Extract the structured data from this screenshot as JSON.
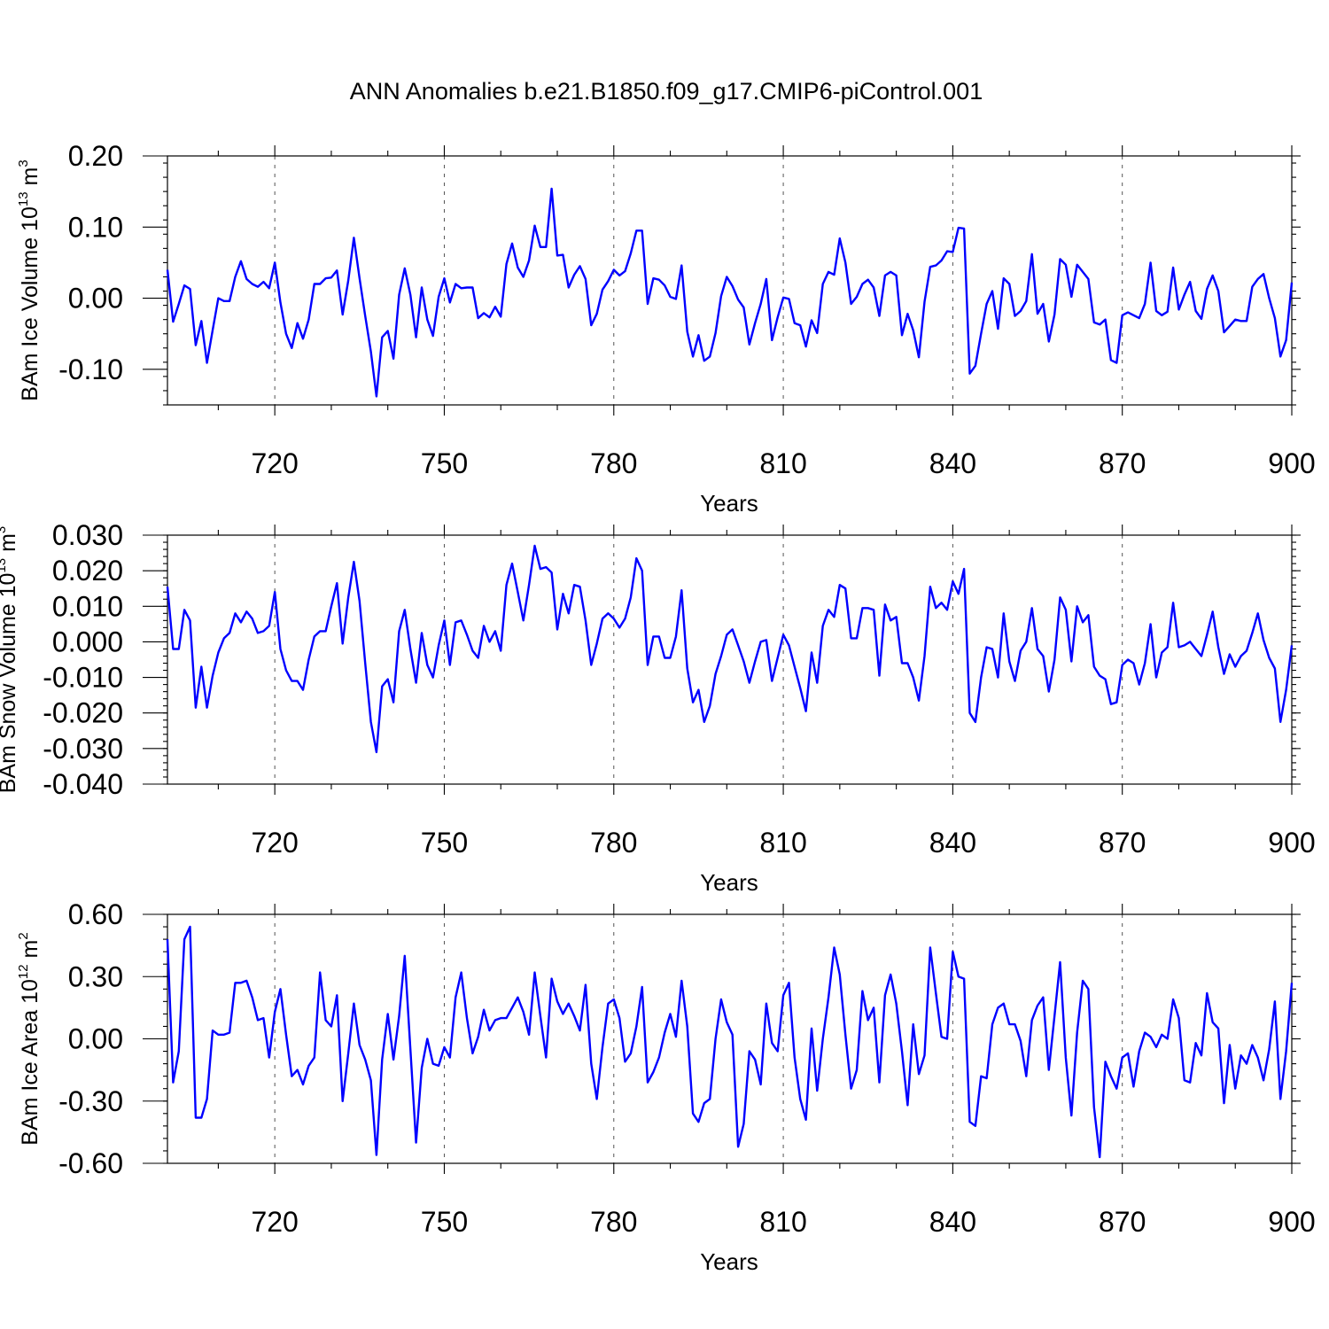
{
  "figure": {
    "title": "ANN Anomalies b.e21.B1850.f09_g17.CMIP6-piControl.001",
    "line_color": "#0000ff"
  },
  "chart_data": [
    {
      "type": "line",
      "title": "ANN Anomalies b.e21.B1850.f09_g17.CMIP6-piControl.001",
      "ylabel": "BAm Ice Volume",
      "ylabel_unit": "10",
      "ylabel_exp": "13",
      "ylabel_unit_tail": "m",
      "ylabel_unit_exp": "3",
      "xlabel": "Years",
      "xlim": [
        701,
        900
      ],
      "ylim": [
        -0.15,
        0.2
      ],
      "xticks": [
        720,
        750,
        780,
        810,
        840,
        870,
        900
      ],
      "xtick_labels": [
        "720",
        "750",
        "780",
        "810",
        "840",
        "870",
        "900"
      ],
      "yticks": [
        0.2,
        0.1,
        0.0,
        -0.1
      ],
      "ytick_labels": [
        "0.20",
        "0.10",
        "0.00",
        "-0.10"
      ],
      "grid": "vertical dashed at x ticks",
      "series": [
        {
          "name": "BAm Ice Volume",
          "x_start": 701,
          "x_step": 1,
          "values": [
            0.04,
            -0.033,
            -0.008,
            0.018,
            0.013,
            -0.066,
            -0.032,
            -0.091,
            -0.045,
            0.0,
            -0.004,
            -0.004,
            0.03,
            0.052,
            0.027,
            0.02,
            0.016,
            0.023,
            0.014,
            0.05,
            -0.006,
            -0.05,
            -0.07,
            -0.035,
            -0.057,
            -0.03,
            0.02,
            0.02,
            0.028,
            0.029,
            0.039,
            -0.023,
            0.025,
            0.085,
            0.028,
            -0.025,
            -0.075,
            -0.138,
            -0.055,
            -0.046,
            -0.085,
            0.005,
            0.042,
            0.005,
            -0.055,
            0.015,
            -0.03,
            -0.053,
            0.002,
            0.028,
            -0.006,
            0.02,
            0.014,
            0.015,
            0.015,
            -0.028,
            -0.021,
            -0.027,
            -0.012,
            -0.026,
            0.048,
            0.077,
            0.043,
            0.03,
            0.053,
            0.102,
            0.072,
            0.072,
            0.154,
            0.06,
            0.061,
            0.015,
            0.033,
            0.045,
            0.027,
            -0.038,
            -0.022,
            0.012,
            0.024,
            0.04,
            0.032,
            0.038,
            0.063,
            0.095,
            0.095,
            -0.008,
            0.028,
            0.026,
            0.018,
            0.002,
            -0.001,
            0.046,
            -0.047,
            -0.082,
            -0.052,
            -0.088,
            -0.082,
            -0.049,
            0.003,
            0.03,
            0.017,
            -0.002,
            -0.013,
            -0.065,
            -0.035,
            -0.008,
            0.027,
            -0.059,
            -0.027,
            0.001,
            -0.001,
            -0.035,
            -0.038,
            -0.068,
            -0.031,
            -0.049,
            0.02,
            0.037,
            0.033,
            0.084,
            0.05,
            -0.008,
            0.002,
            0.02,
            0.026,
            0.015,
            -0.025,
            0.032,
            0.037,
            0.032,
            -0.052,
            -0.022,
            -0.045,
            -0.083,
            -0.005,
            0.044,
            0.046,
            0.053,
            0.066,
            0.065,
            0.099,
            0.098,
            -0.106,
            -0.095,
            -0.05,
            -0.008,
            0.01,
            -0.043,
            0.028,
            0.02,
            -0.025,
            -0.018,
            -0.004,
            0.062,
            -0.022,
            -0.008,
            -0.061,
            -0.023,
            0.055,
            0.047,
            0.002,
            0.047,
            0.037,
            0.027,
            -0.034,
            -0.037,
            -0.03,
            -0.087,
            -0.091,
            -0.024,
            -0.02,
            -0.024,
            -0.028,
            -0.008,
            0.05,
            -0.018,
            -0.024,
            -0.019,
            0.043,
            -0.016,
            0.005,
            0.023,
            -0.018,
            -0.029,
            0.013,
            0.032,
            0.01,
            -0.048,
            -0.039,
            -0.03,
            -0.032,
            -0.032,
            0.016,
            0.027,
            0.034,
            0.0,
            -0.028,
            -0.082,
            -0.059,
            0.022
          ]
        }
      ]
    },
    {
      "type": "line",
      "ylabel": "BAm Snow Volume",
      "ylabel_unit": "10",
      "ylabel_exp": "13",
      "ylabel_unit_tail": "m",
      "ylabel_unit_exp": "3",
      "xlabel": "Years",
      "xlim": [
        701,
        900
      ],
      "ylim": [
        -0.04,
        0.03
      ],
      "xticks": [
        720,
        750,
        780,
        810,
        840,
        870,
        900
      ],
      "xtick_labels": [
        "720",
        "750",
        "780",
        "810",
        "840",
        "870",
        "900"
      ],
      "yticks": [
        0.03,
        0.02,
        0.01,
        0.0,
        -0.01,
        -0.02,
        -0.03,
        -0.04
      ],
      "ytick_labels": [
        "0.030",
        "0.020",
        "0.010",
        "0.000",
        "-0.010",
        "-0.020",
        "-0.030",
        "-0.040"
      ],
      "grid": "vertical dashed at x ticks",
      "series": [
        {
          "name": "BAm Snow Volume",
          "x_start": 701,
          "x_step": 1,
          "values": [
            0.0155,
            -0.002,
            -0.002,
            0.009,
            0.006,
            -0.0185,
            -0.007,
            -0.0185,
            -0.0095,
            -0.003,
            0.001,
            0.0025,
            0.008,
            0.0055,
            0.0085,
            0.0065,
            0.0025,
            0.003,
            0.0045,
            0.014,
            -0.002,
            -0.008,
            -0.011,
            -0.011,
            -0.0135,
            -0.005,
            0.0015,
            0.003,
            0.003,
            0.01,
            0.0165,
            -0.0005,
            0.0125,
            0.0225,
            0.0115,
            -0.006,
            -0.0225,
            -0.031,
            -0.0125,
            -0.0105,
            -0.017,
            0.003,
            0.009,
            -0.002,
            -0.0115,
            0.0025,
            -0.0065,
            -0.01,
            -0.001,
            0.006,
            -0.0065,
            0.0055,
            0.006,
            0.002,
            -0.0025,
            -0.0045,
            0.0045,
            0.0,
            0.003,
            -0.0025,
            0.016,
            0.022,
            0.014,
            0.006,
            0.016,
            0.027,
            0.0205,
            0.021,
            0.0195,
            0.0035,
            0.0135,
            0.008,
            0.016,
            0.0155,
            0.006,
            -0.0065,
            -0.0005,
            0.0065,
            0.008,
            0.0065,
            0.004,
            0.0065,
            0.0125,
            0.0235,
            0.02,
            -0.0065,
            0.0015,
            0.0015,
            -0.0045,
            -0.0045,
            0.0015,
            0.0145,
            -0.0075,
            -0.017,
            -0.0135,
            -0.0225,
            -0.018,
            -0.009,
            -0.004,
            0.002,
            0.0035,
            -0.001,
            -0.0055,
            -0.0115,
            -0.0055,
            0.0,
            0.0005,
            -0.011,
            -0.0045,
            0.002,
            -0.001,
            -0.007,
            -0.013,
            -0.0195,
            -0.003,
            -0.0115,
            0.0045,
            0.009,
            0.007,
            0.016,
            0.015,
            0.001,
            0.001,
            0.0095,
            0.0095,
            0.009,
            -0.0095,
            0.0105,
            0.006,
            0.007,
            -0.006,
            -0.006,
            -0.01,
            -0.0165,
            -0.004,
            0.0155,
            0.0095,
            0.011,
            0.009,
            0.017,
            0.0135,
            0.0205,
            -0.02,
            -0.0225,
            -0.01,
            -0.0015,
            -0.002,
            -0.01,
            0.008,
            -0.0055,
            -0.011,
            -0.0025,
            0.0,
            0.0095,
            -0.002,
            -0.004,
            -0.014,
            -0.005,
            0.0125,
            0.009,
            -0.0055,
            0.01,
            0.0055,
            0.0075,
            -0.007,
            -0.0095,
            -0.0105,
            -0.0175,
            -0.017,
            -0.0065,
            -0.005,
            -0.006,
            -0.012,
            -0.006,
            0.005,
            -0.01,
            -0.003,
            -0.0015,
            0.011,
            -0.0015,
            -0.001,
            0.0,
            -0.002,
            -0.004,
            0.002,
            0.0085,
            -0.0015,
            -0.009,
            -0.0035,
            -0.007,
            -0.004,
            -0.0025,
            0.0025,
            0.008,
            0.0005,
            -0.0045,
            -0.0075,
            -0.0225,
            -0.0135,
            -0.001
          ]
        }
      ]
    },
    {
      "type": "line",
      "ylabel": "BAm Ice Area",
      "ylabel_unit": "10",
      "ylabel_exp": "12",
      "ylabel_unit_tail": "m",
      "ylabel_unit_exp": "2",
      "xlabel": "Years",
      "xlim": [
        701,
        900
      ],
      "ylim": [
        -0.6,
        0.6
      ],
      "xticks": [
        720,
        750,
        780,
        810,
        840,
        870,
        900
      ],
      "xtick_labels": [
        "720",
        "750",
        "780",
        "810",
        "840",
        "870",
        "900"
      ],
      "yticks": [
        0.6,
        0.3,
        0.0,
        -0.3,
        -0.6
      ],
      "ytick_labels": [
        "0.60",
        "0.30",
        "0.00",
        "-0.30",
        "-0.60"
      ],
      "grid": "vertical dashed at x ticks",
      "series": [
        {
          "name": "BAm Ice Area",
          "x_start": 701,
          "x_step": 1,
          "values": [
            0.48,
            -0.21,
            -0.06,
            0.48,
            0.54,
            -0.38,
            -0.38,
            -0.29,
            0.04,
            0.02,
            0.02,
            0.03,
            0.27,
            0.27,
            0.28,
            0.2,
            0.09,
            0.1,
            -0.09,
            0.13,
            0.24,
            0.02,
            -0.18,
            -0.15,
            -0.22,
            -0.13,
            -0.09,
            0.32,
            0.09,
            0.06,
            0.21,
            -0.3,
            -0.07,
            0.17,
            -0.03,
            -0.1,
            -0.2,
            -0.56,
            -0.1,
            0.12,
            -0.1,
            0.11,
            0.4,
            -0.05,
            -0.5,
            -0.14,
            0.0,
            -0.12,
            -0.13,
            -0.04,
            -0.09,
            0.2,
            0.32,
            0.1,
            -0.07,
            0.01,
            0.14,
            0.04,
            0.09,
            0.1,
            0.1,
            0.15,
            0.2,
            0.13,
            0.02,
            0.32,
            0.11,
            -0.09,
            0.29,
            0.18,
            0.12,
            0.17,
            0.11,
            0.04,
            0.26,
            -0.12,
            -0.29,
            -0.04,
            0.17,
            0.19,
            0.1,
            -0.11,
            -0.07,
            0.06,
            0.25,
            -0.21,
            -0.16,
            -0.09,
            0.03,
            0.12,
            0.01,
            0.28,
            0.06,
            -0.36,
            -0.4,
            -0.31,
            -0.29,
            0.0,
            0.19,
            0.08,
            0.02,
            -0.52,
            -0.41,
            -0.06,
            -0.1,
            -0.22,
            0.17,
            -0.02,
            -0.06,
            0.21,
            0.27,
            -0.09,
            -0.29,
            -0.39,
            0.05,
            -0.25,
            0.0,
            0.2,
            0.44,
            0.31,
            0.02,
            -0.24,
            -0.15,
            0.23,
            0.09,
            0.15,
            -0.21,
            0.21,
            0.31,
            0.17,
            -0.06,
            -0.32,
            0.07,
            -0.17,
            -0.08,
            0.44,
            0.22,
            0.01,
            0.0,
            0.42,
            0.3,
            0.29,
            -0.4,
            -0.42,
            -0.18,
            -0.19,
            0.07,
            0.15,
            0.17,
            0.07,
            0.07,
            -0.01,
            -0.18,
            0.09,
            0.16,
            0.2,
            -0.15,
            0.11,
            0.37,
            -0.09,
            -0.37,
            0.03,
            0.28,
            0.24,
            -0.33,
            -0.57,
            -0.11,
            -0.18,
            -0.24,
            -0.09,
            -0.07,
            -0.23,
            -0.06,
            0.03,
            0.01,
            -0.04,
            0.02,
            0.0,
            0.19,
            0.1,
            -0.2,
            -0.21,
            -0.02,
            -0.08,
            0.22,
            0.08,
            0.05,
            -0.31,
            -0.03,
            -0.24,
            -0.08,
            -0.12,
            -0.03,
            -0.09,
            -0.2,
            -0.05,
            0.18,
            -0.29,
            -0.06,
            0.27
          ]
        }
      ]
    }
  ]
}
